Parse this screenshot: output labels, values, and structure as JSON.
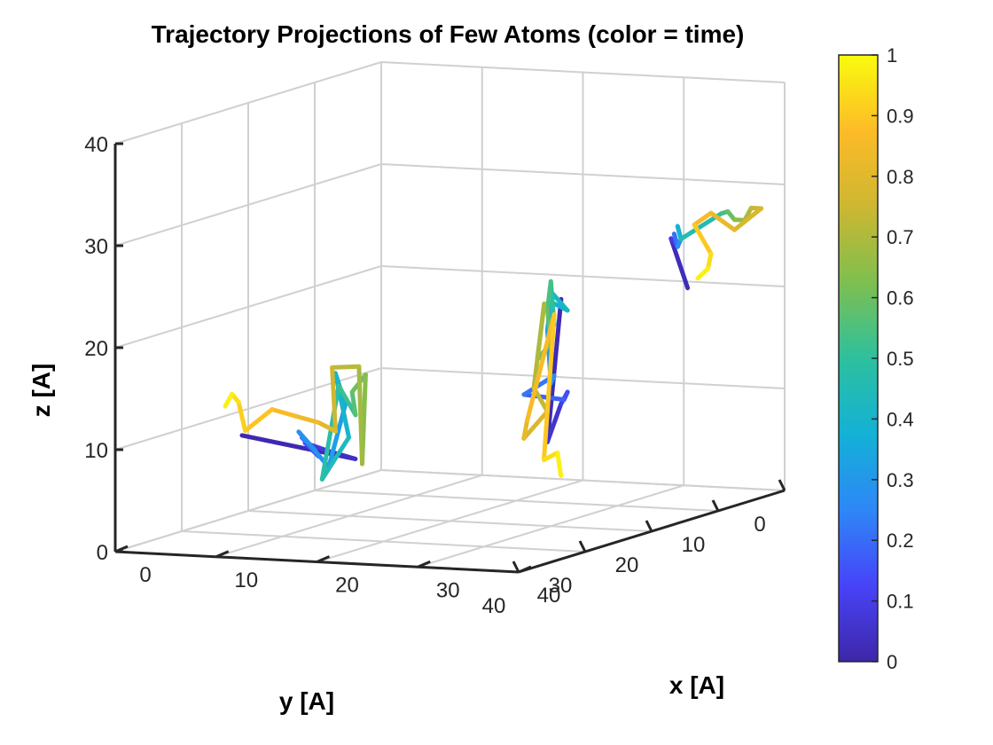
{
  "chart_data": {
    "type": "line",
    "subtype": "3d-trajectory",
    "title": "Trajectory Projections of Few Atoms (color = time)",
    "xlabel": "x [A]",
    "ylabel": "y [A]",
    "zlabel": "z [A]",
    "xlim": [
      0,
      40
    ],
    "ylim": [
      0,
      40
    ],
    "zlim": [
      0,
      40
    ],
    "x_ticks": [
      "0",
      "10",
      "20",
      "30",
      "40"
    ],
    "y_ticks": [
      "0",
      "10",
      "20",
      "30",
      "40"
    ],
    "z_ticks": [
      "0",
      "10",
      "20",
      "30",
      "40"
    ],
    "grid": true,
    "colormap": "parula",
    "colormap_stops": [
      "#3e26a8",
      "#4743f8",
      "#2e87f7",
      "#13b1d6",
      "#2dc09e",
      "#7ebf4f",
      "#cdb731",
      "#fdbb27",
      "#f9fb0e"
    ],
    "colorbar": {
      "position": "right",
      "range": [
        0,
        1
      ],
      "ticks": [
        "0",
        "0.1",
        "0.2",
        "0.3",
        "0.4",
        "0.5",
        "0.6",
        "0.7",
        "0.8",
        "0.9",
        "1"
      ]
    },
    "series": [
      {
        "points": [
          [
            4,
            27,
            9,
            0.0
          ],
          [
            6,
            13,
            4,
            0.03
          ],
          [
            5,
            15,
            5,
            0.06
          ],
          [
            3,
            16,
            6,
            0.1
          ],
          [
            5,
            17,
            5,
            0.14
          ],
          [
            4,
            18,
            7,
            0.18
          ],
          [
            6,
            19,
            6,
            0.22
          ],
          [
            5,
            20,
            8,
            0.26
          ],
          [
            6,
            17,
            4,
            0.3
          ],
          [
            7,
            16,
            10,
            0.34
          ],
          [
            6,
            16,
            13,
            0.38
          ],
          [
            8,
            17,
            7,
            0.42
          ],
          [
            6,
            18,
            3,
            0.46
          ],
          [
            7,
            17,
            12,
            0.5
          ],
          [
            8,
            16,
            9,
            0.54
          ],
          [
            7,
            15,
            11,
            0.58
          ],
          [
            9,
            16,
            13,
            0.62
          ],
          [
            8,
            15,
            4,
            0.66
          ],
          [
            9,
            17,
            14,
            0.7
          ],
          [
            7,
            18,
            14,
            0.74
          ],
          [
            8,
            19,
            8,
            0.78
          ],
          [
            7,
            20,
            9,
            0.82
          ],
          [
            6,
            22,
            10,
            0.85
          ],
          [
            5,
            24,
            11,
            0.88
          ],
          [
            3,
            25,
            9,
            0.9
          ],
          [
            3,
            26,
            12,
            0.93
          ],
          [
            3,
            27,
            13,
            0.96
          ],
          [
            3,
            28,
            12,
            1.0
          ]
        ]
      },
      {
        "points": [
          [
            33,
            23,
            23,
            0.0
          ],
          [
            29,
            19,
            8,
            0.04
          ],
          [
            31,
            20,
            12,
            0.08
          ],
          [
            31,
            19,
            13,
            0.12
          ],
          [
            30,
            18,
            12,
            0.16
          ],
          [
            28,
            21,
            13,
            0.2
          ],
          [
            31,
            21,
            15,
            0.24
          ],
          [
            30,
            20,
            14,
            0.28
          ],
          [
            29,
            19,
            19,
            0.32
          ],
          [
            30,
            20,
            22,
            0.36
          ],
          [
            31,
            19,
            21,
            0.4
          ],
          [
            30,
            20,
            23,
            0.44
          ],
          [
            31,
            21,
            20,
            0.48
          ],
          [
            30,
            20,
            24,
            0.52
          ],
          [
            29,
            19,
            21,
            0.56
          ],
          [
            30,
            20,
            18,
            0.6
          ],
          [
            28,
            19,
            16,
            0.64
          ],
          [
            30,
            21,
            22,
            0.68
          ],
          [
            27,
            18,
            13,
            0.72
          ],
          [
            29,
            19,
            11,
            0.76
          ],
          [
            26,
            18,
            8,
            0.8
          ],
          [
            27,
            19,
            10,
            0.84
          ],
          [
            31,
            21,
            21,
            0.88
          ],
          [
            28,
            18,
            6,
            0.92
          ],
          [
            30,
            19,
            7,
            0.96
          ],
          [
            31,
            20,
            5,
            1.0
          ]
        ]
      },
      {
        "points": [
          [
            35,
            7,
            21,
            0.0
          ],
          [
            34,
            8,
            26,
            0.06
          ],
          [
            34,
            7,
            25,
            0.12
          ],
          [
            33,
            6,
            26,
            0.18
          ],
          [
            34,
            7,
            25,
            0.24
          ],
          [
            35,
            8,
            26,
            0.3
          ],
          [
            34,
            7,
            27,
            0.36
          ],
          [
            35,
            8,
            26,
            0.42
          ],
          [
            37,
            5,
            28,
            0.5
          ],
          [
            37,
            4,
            28,
            0.56
          ],
          [
            37,
            3,
            27,
            0.62
          ],
          [
            38,
            3,
            27,
            0.68
          ],
          [
            38,
            2,
            28,
            0.72
          ],
          [
            39,
            2,
            28,
            0.76
          ],
          [
            37,
            3,
            26,
            0.8
          ],
          [
            36,
            5,
            28,
            0.84
          ],
          [
            35,
            6,
            27,
            0.88
          ],
          [
            36,
            5,
            24,
            0.92
          ],
          [
            37,
            7,
            23,
            0.96
          ],
          [
            36,
            7,
            22,
            1.0
          ]
        ]
      }
    ]
  }
}
